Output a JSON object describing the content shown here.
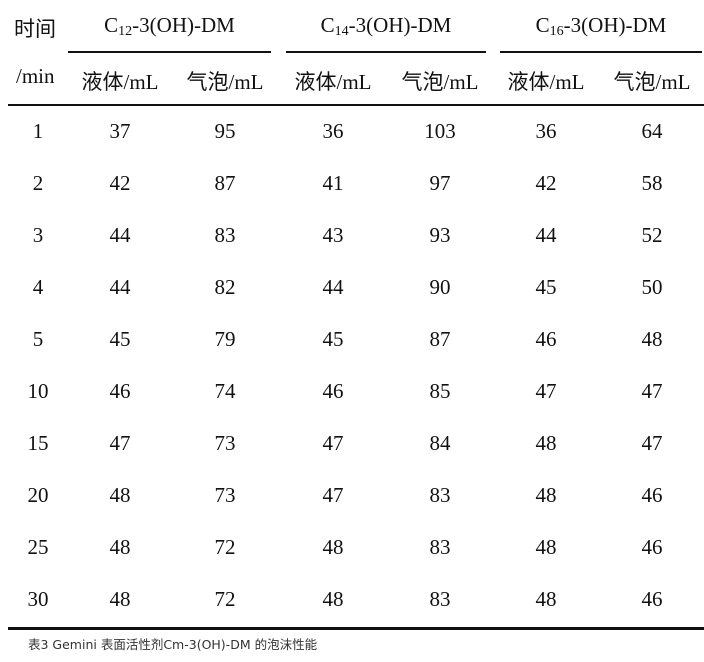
{
  "table": {
    "time_header_line1": "时间",
    "time_header_line2": "/min",
    "groups": [
      {
        "prefix": "C",
        "sub": "12",
        "suffix": "-3(OH)-DM"
      },
      {
        "prefix": "C",
        "sub": "14",
        "suffix": "-3(OH)-DM"
      },
      {
        "prefix": "C",
        "sub": "16",
        "suffix": "-3(OH)-DM"
      }
    ],
    "subheaders": [
      "液体/mL",
      "气泡/mL",
      "液体/mL",
      "气泡/mL",
      "液体/mL",
      "气泡/mL"
    ],
    "rows": [
      [
        "1",
        "37",
        "95",
        "36",
        "103",
        "36",
        "64"
      ],
      [
        "2",
        "42",
        "87",
        "41",
        "97",
        "42",
        "58"
      ],
      [
        "3",
        "44",
        "83",
        "43",
        "93",
        "44",
        "52"
      ],
      [
        "4",
        "44",
        "82",
        "44",
        "90",
        "45",
        "50"
      ],
      [
        "5",
        "45",
        "79",
        "45",
        "87",
        "46",
        "48"
      ],
      [
        "10",
        "46",
        "74",
        "46",
        "85",
        "47",
        "47"
      ],
      [
        "15",
        "47",
        "73",
        "47",
        "84",
        "48",
        "47"
      ],
      [
        "20",
        "48",
        "73",
        "47",
        "83",
        "48",
        "46"
      ],
      [
        "25",
        "48",
        "72",
        "48",
        "83",
        "48",
        "46"
      ],
      [
        "30",
        "48",
        "72",
        "48",
        "83",
        "48",
        "46"
      ]
    ]
  },
  "caption": "表3 Gemini 表面活性剂Cm-3(OH)-DM 的泡沫性能"
}
